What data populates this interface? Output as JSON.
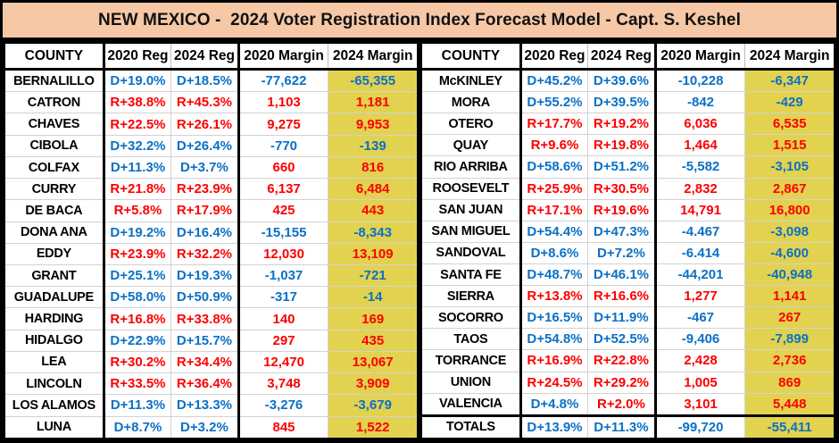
{
  "title": "NEW MEXICO -  2024 Voter Registration Index Forecast Model - Capt. S. Keshel",
  "colors": {
    "dem_blue": "#0B70C5",
    "rep_red": "#FC0000",
    "highlight_yellow": "#E2D24F",
    "title_bg": "#F6C8A6",
    "grid_gray": "#D2D2D2",
    "border_black": "#000000"
  },
  "chart_data": {
    "type": "table",
    "columns": [
      "COUNTY",
      "2020 Reg",
      "2024 Reg",
      "2020 Margin",
      "2024 Margin"
    ],
    "tables": [
      {
        "side": "left",
        "rows": [
          {
            "cells": [
              "BERNALILLO",
              "D+19.0%",
              "D+18.5%",
              "-77,622",
              "-65,355"
            ],
            "colors": [
              "K",
              "D",
              "D",
              "D",
              "D"
            ],
            "totals": false
          },
          {
            "cells": [
              "CATRON",
              "R+38.8%",
              "R+45.3%",
              "1,103",
              "1,181"
            ],
            "colors": [
              "K",
              "R",
              "R",
              "R",
              "R"
            ],
            "totals": false
          },
          {
            "cells": [
              "CHAVES",
              "R+22.5%",
              "R+26.1%",
              "9,275",
              "9,953"
            ],
            "colors": [
              "K",
              "R",
              "R",
              "R",
              "R"
            ],
            "totals": false
          },
          {
            "cells": [
              "CIBOLA",
              "D+32.2%",
              "D+26.4%",
              "-770",
              "-139"
            ],
            "colors": [
              "K",
              "D",
              "D",
              "D",
              "D"
            ],
            "totals": false
          },
          {
            "cells": [
              "COLFAX",
              "D+11.3%",
              "D+3.7%",
              "660",
              "816"
            ],
            "colors": [
              "K",
              "D",
              "D",
              "R",
              "R"
            ],
            "totals": false
          },
          {
            "cells": [
              "CURRY",
              "R+21.8%",
              "R+23.9%",
              "6,137",
              "6,484"
            ],
            "colors": [
              "K",
              "R",
              "R",
              "R",
              "R"
            ],
            "totals": false
          },
          {
            "cells": [
              "DE BACA",
              "R+5.8%",
              "R+17.9%",
              "425",
              "443"
            ],
            "colors": [
              "K",
              "R",
              "R",
              "R",
              "R"
            ],
            "totals": false
          },
          {
            "cells": [
              "DONA ANA",
              "D+19.2%",
              "D+16.4%",
              "-15,155",
              "-8,343"
            ],
            "colors": [
              "K",
              "D",
              "D",
              "D",
              "D"
            ],
            "totals": false
          },
          {
            "cells": [
              "EDDY",
              "R+23.9%",
              "R+32.2%",
              "12,030",
              "13,109"
            ],
            "colors": [
              "K",
              "R",
              "R",
              "R",
              "R"
            ],
            "totals": false
          },
          {
            "cells": [
              "GRANT",
              "D+25.1%",
              "D+19.3%",
              "-1,037",
              "-721"
            ],
            "colors": [
              "K",
              "D",
              "D",
              "D",
              "D"
            ],
            "totals": false
          },
          {
            "cells": [
              "GUADALUPE",
              "D+58.0%",
              "D+50.9%",
              "-317",
              "-14"
            ],
            "colors": [
              "K",
              "D",
              "D",
              "D",
              "D"
            ],
            "totals": false
          },
          {
            "cells": [
              "HARDING",
              "R+16.8%",
              "R+33.8%",
              "140",
              "169"
            ],
            "colors": [
              "K",
              "R",
              "R",
              "R",
              "R"
            ],
            "totals": false
          },
          {
            "cells": [
              "HIDALGO",
              "D+22.9%",
              "D+15.7%",
              "297",
              "435"
            ],
            "colors": [
              "K",
              "D",
              "D",
              "R",
              "R"
            ],
            "totals": false
          },
          {
            "cells": [
              "LEA",
              "R+30.2%",
              "R+34.4%",
              "12,470",
              "13,067"
            ],
            "colors": [
              "K",
              "R",
              "R",
              "R",
              "R"
            ],
            "totals": false
          },
          {
            "cells": [
              "LINCOLN",
              "R+33.5%",
              "R+36.4%",
              "3,748",
              "3,909"
            ],
            "colors": [
              "K",
              "R",
              "R",
              "R",
              "R"
            ],
            "totals": false
          },
          {
            "cells": [
              "LOS ALAMOS",
              "D+11.3%",
              "D+13.3%",
              "-3,276",
              "-3,679"
            ],
            "colors": [
              "K",
              "D",
              "D",
              "D",
              "D"
            ],
            "totals": false
          },
          {
            "cells": [
              "LUNA",
              "D+8.7%",
              "D+3.2%",
              "845",
              "1,522"
            ],
            "colors": [
              "K",
              "D",
              "D",
              "R",
              "R"
            ],
            "totals": false
          }
        ]
      },
      {
        "side": "right",
        "rows": [
          {
            "cells": [
              "McKINLEY",
              "D+45.2%",
              "D+39.6%",
              "-10,228",
              "-6,347"
            ],
            "colors": [
              "K",
              "D",
              "D",
              "D",
              "D"
            ],
            "totals": false
          },
          {
            "cells": [
              "MORA",
              "D+55.2%",
              "D+39.5%",
              "-842",
              "-429"
            ],
            "colors": [
              "K",
              "D",
              "D",
              "D",
              "D"
            ],
            "totals": false
          },
          {
            "cells": [
              "OTERO",
              "R+17.7%",
              "R+19.2%",
              "6,036",
              "6,535"
            ],
            "colors": [
              "K",
              "R",
              "R",
              "R",
              "R"
            ],
            "totals": false
          },
          {
            "cells": [
              "QUAY",
              "R+9.6%",
              "R+19.8%",
              "1,464",
              "1,515"
            ],
            "colors": [
              "K",
              "R",
              "R",
              "R",
              "R"
            ],
            "totals": false
          },
          {
            "cells": [
              "RIO ARRIBA",
              "D+58.6%",
              "D+51.2%",
              "-5,582",
              "-3,105"
            ],
            "colors": [
              "K",
              "D",
              "D",
              "D",
              "D"
            ],
            "totals": false
          },
          {
            "cells": [
              "ROOSEVELT",
              "R+25.9%",
              "R+30.5%",
              "2,832",
              "2,867"
            ],
            "colors": [
              "K",
              "R",
              "R",
              "R",
              "R"
            ],
            "totals": false
          },
          {
            "cells": [
              "SAN JUAN",
              "R+17.1%",
              "R+19.6%",
              "14,791",
              "16,800"
            ],
            "colors": [
              "K",
              "R",
              "R",
              "R",
              "R"
            ],
            "totals": false
          },
          {
            "cells": [
              "SAN MIGUEL",
              "D+54.4%",
              "D+47.3%",
              "-4.467",
              "-3,098"
            ],
            "colors": [
              "K",
              "D",
              "D",
              "D",
              "D"
            ],
            "totals": false
          },
          {
            "cells": [
              "SANDOVAL",
              "D+8.6%",
              "D+7.2%",
              "-6.414",
              "-4,600"
            ],
            "colors": [
              "K",
              "D",
              "D",
              "D",
              "D"
            ],
            "totals": false
          },
          {
            "cells": [
              "SANTA FE",
              "D+48.7%",
              "D+46.1%",
              "-44,201",
              "-40,948"
            ],
            "colors": [
              "K",
              "D",
              "D",
              "D",
              "D"
            ],
            "totals": false
          },
          {
            "cells": [
              "SIERRA",
              "R+13.8%",
              "R+16.6%",
              "1,277",
              "1,141"
            ],
            "colors": [
              "K",
              "R",
              "R",
              "R",
              "R"
            ],
            "totals": false
          },
          {
            "cells": [
              "SOCORRO",
              "D+16.5%",
              "D+11.9%",
              "-467",
              "267"
            ],
            "colors": [
              "K",
              "D",
              "D",
              "D",
              "R"
            ],
            "totals": false
          },
          {
            "cells": [
              "TAOS",
              "D+54.8%",
              "D+52.5%",
              "-9,406",
              "-7,899"
            ],
            "colors": [
              "K",
              "D",
              "D",
              "D",
              "D"
            ],
            "totals": false
          },
          {
            "cells": [
              "TORRANCE",
              "R+16.9%",
              "R+22.8%",
              "2,428",
              "2,736"
            ],
            "colors": [
              "K",
              "R",
              "R",
              "R",
              "R"
            ],
            "totals": false
          },
          {
            "cells": [
              "UNION",
              "R+24.5%",
              "R+29.2%",
              "1,005",
              "869"
            ],
            "colors": [
              "K",
              "R",
              "R",
              "R",
              "R"
            ],
            "totals": false
          },
          {
            "cells": [
              "VALENCIA",
              "D+4.8%",
              "R+2.0%",
              "3,101",
              "5,448"
            ],
            "colors": [
              "K",
              "D",
              "R",
              "R",
              "R"
            ],
            "totals": false
          },
          {
            "cells": [
              "TOTALS",
              "D+13.9%",
              "D+11.3%",
              "-99,720",
              "-55,411"
            ],
            "colors": [
              "K",
              "D",
              "D",
              "D",
              "D"
            ],
            "totals": true
          }
        ]
      }
    ]
  }
}
